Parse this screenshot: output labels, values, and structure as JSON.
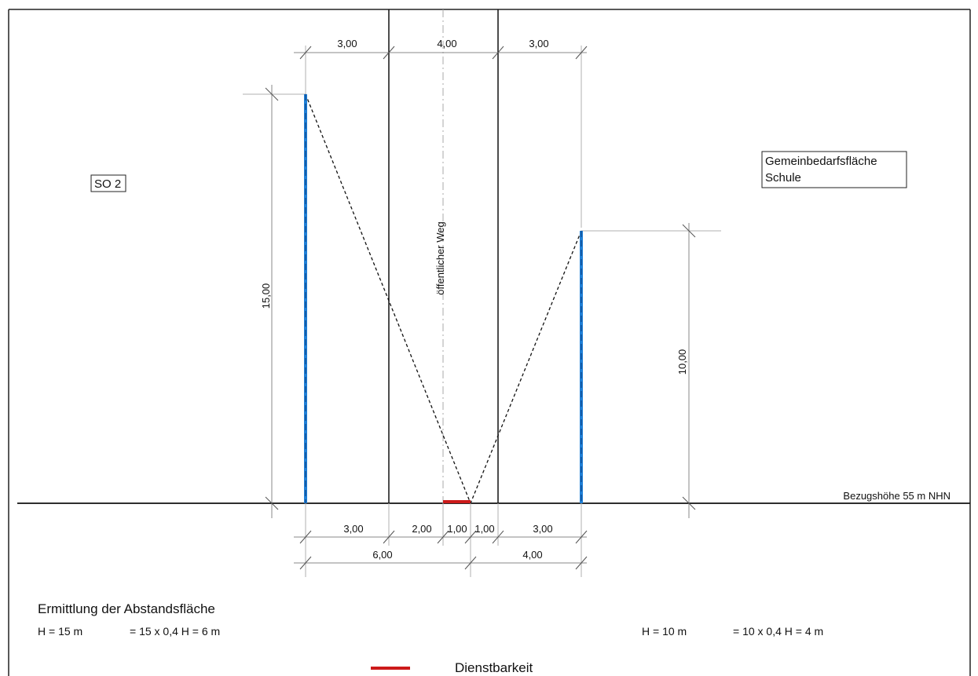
{
  "labels": {
    "left_zone": "SO 2",
    "right_zone_line1": "Gemeinbedarfsfläche",
    "right_zone_line2": "Schule",
    "path": "öffentlicher Weg",
    "reference": "Bezugshöhe 55 m NHN"
  },
  "dimensions": {
    "top": [
      "3,00",
      "4,00",
      "3,00"
    ],
    "bottom_row1": [
      "3,00",
      "2,00",
      "1,00",
      "1,00",
      "3,00"
    ],
    "bottom_row2": [
      "6,00",
      "4,00"
    ],
    "height_left": "15,00",
    "height_right": "10,00"
  },
  "calculation": {
    "title": "Ermittlung der Abstandsfläche",
    "left_h": "H = 15 m",
    "left_formula": "= 15 x 0,4 H = 6 m",
    "right_h": "H = 10 m",
    "right_formula": "= 10 x 0,4 H = 4 m"
  },
  "legend": {
    "label": "Dienstbarkeit",
    "color": "#cc1a1a"
  },
  "colors": {
    "building": "#1f7fd6",
    "easement": "#cc1a1a"
  }
}
